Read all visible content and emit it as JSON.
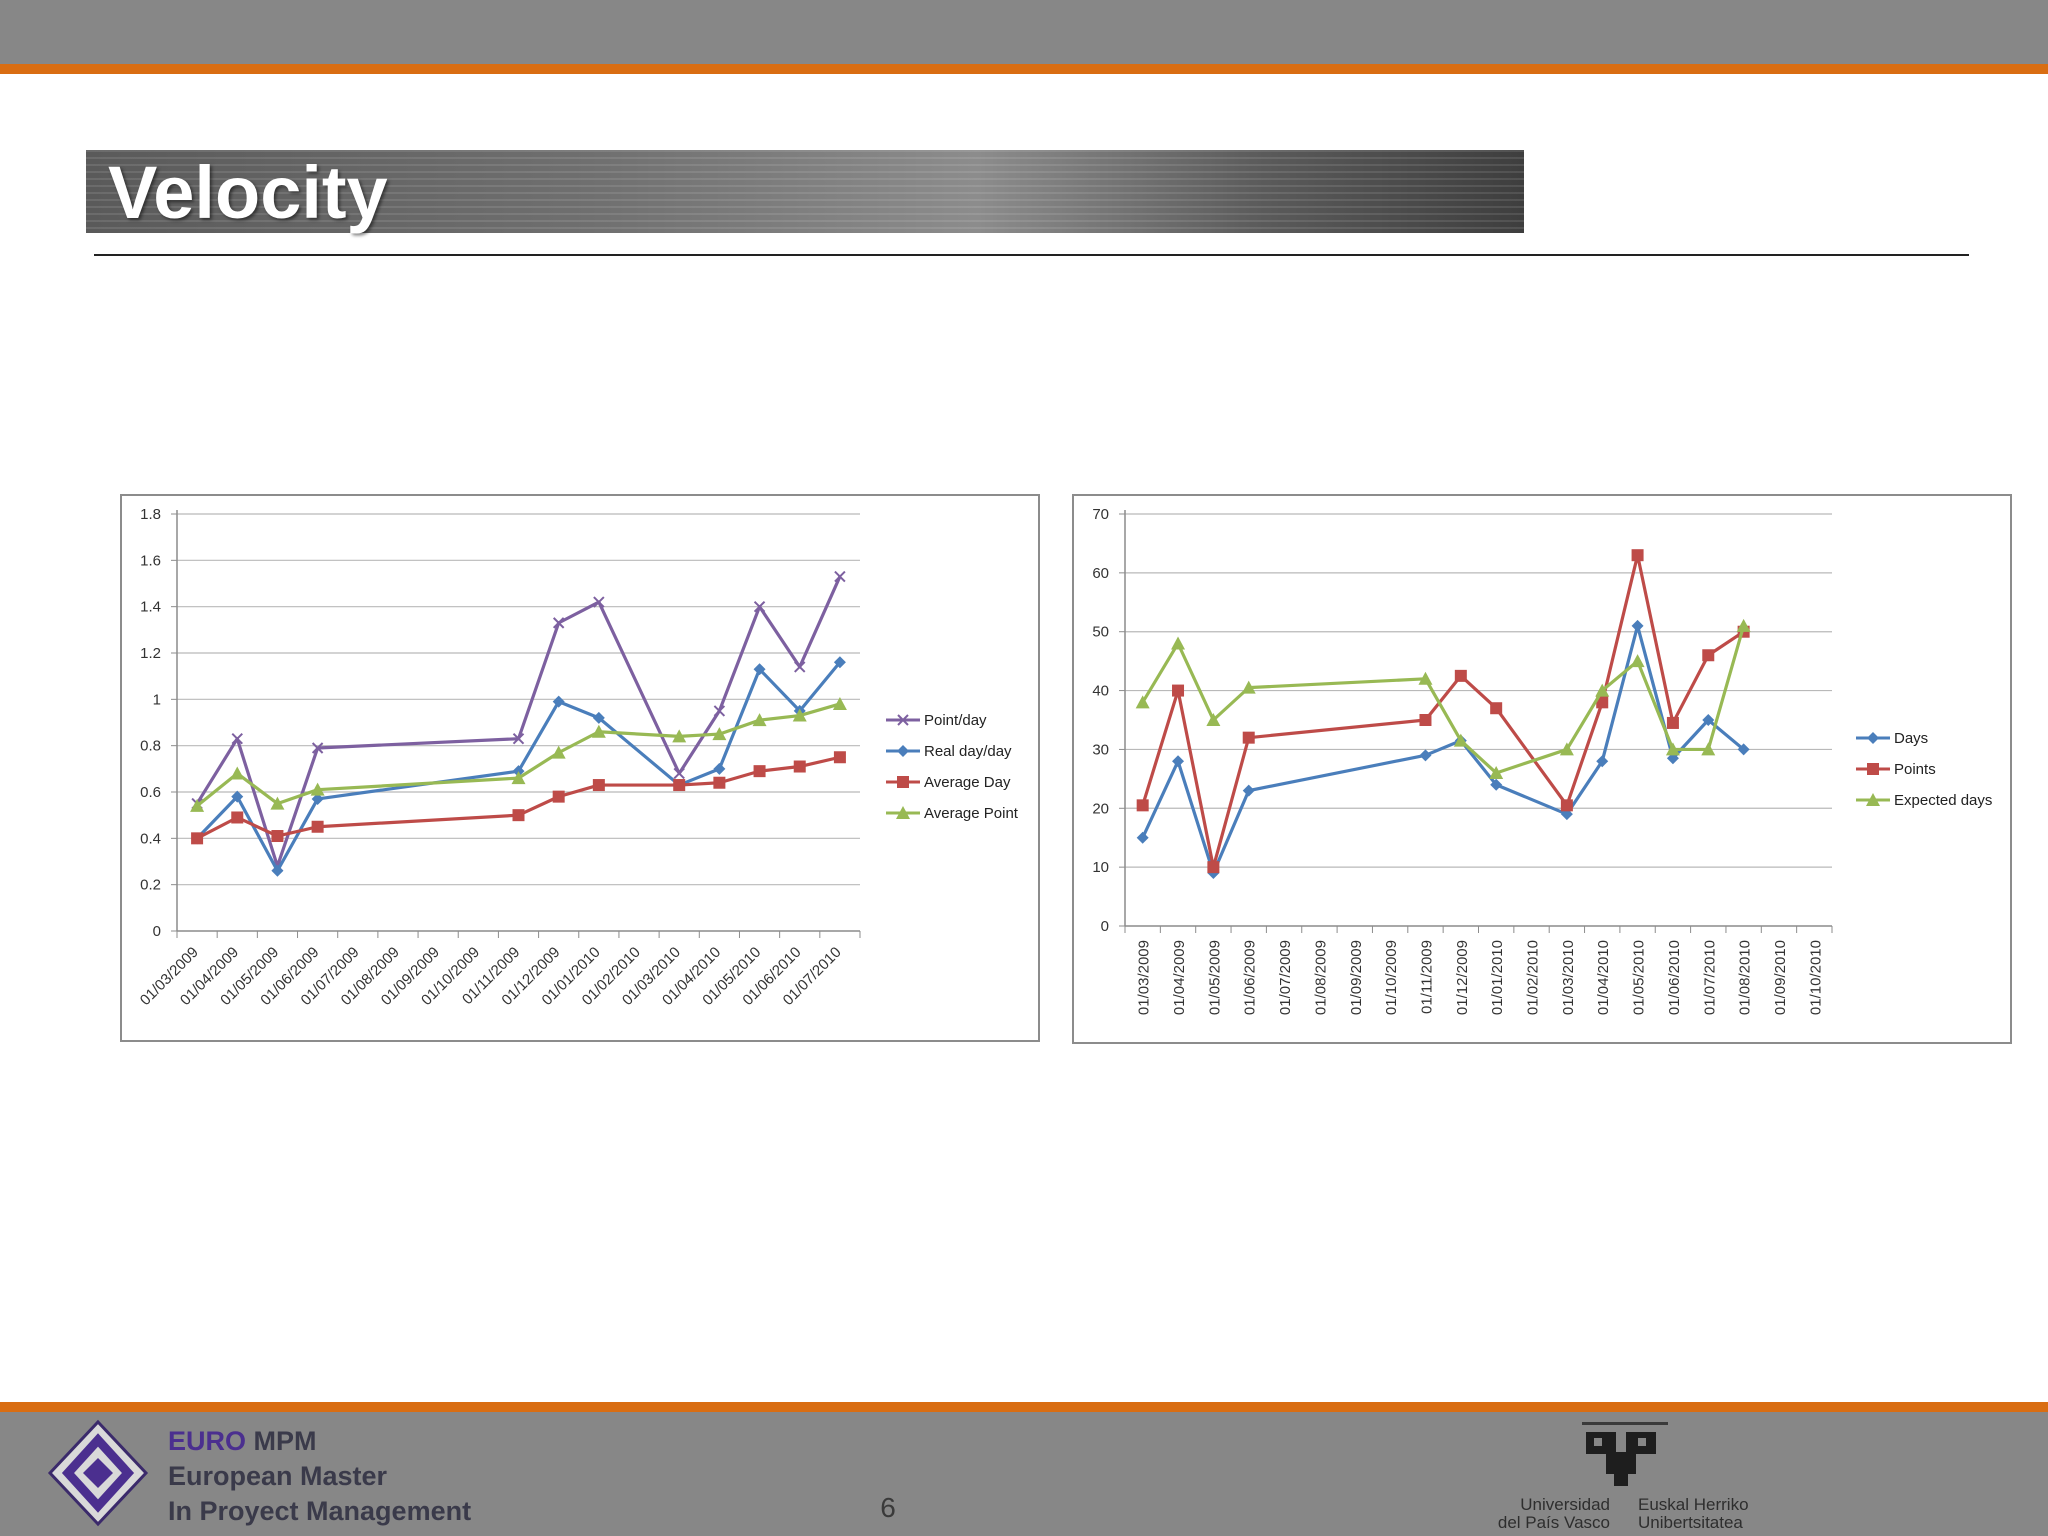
{
  "slide": {
    "title": "Velocity",
    "page_number": "6"
  },
  "footer": {
    "logo_line1_prefix": "EURO",
    "logo_line1_suffix": "MPM",
    "logo_line2": "European Master",
    "logo_line3": "In Proyect Management",
    "university_left_line1": "Universidad",
    "university_left_line2": "del País Vasco",
    "university_right_line1": "Euskal Herriko",
    "university_right_line2": "Unibertsitatea"
  },
  "colors": {
    "accent_orange": "#d96d12",
    "bar_grey": "#878787",
    "series_blue": "#4a7ebb",
    "series_red": "#be4b48",
    "series_green": "#98b954",
    "series_purple": "#7d60a0"
  },
  "chart_data": [
    {
      "type": "line",
      "categories": [
        "01/03/2009",
        "01/04/2009",
        "01/05/2009",
        "01/06/2009",
        "01/07/2009",
        "01/08/2009",
        "01/09/2009",
        "01/10/2009",
        "01/11/2009",
        "01/12/2009",
        "01/01/2010",
        "01/02/2010",
        "01/03/2010",
        "01/04/2010",
        "01/05/2010",
        "01/06/2010",
        "01/07/2010"
      ],
      "x": [
        "2009-03-01",
        "2009-04-01",
        "2009-05-01",
        "2009-06-01",
        "2009-11-01",
        "2009-12-01",
        "2010-01-01",
        "2010-03-01",
        "2010-04-01",
        "2010-05-01",
        "2010-06-01",
        "2010-07-01"
      ],
      "ylim": [
        0,
        1.8
      ],
      "yticks": [
        "0",
        "0.2",
        "0.4",
        "0.6",
        "0.8",
        "1",
        "1.2",
        "1.4",
        "1.6",
        "1.8"
      ],
      "grid": true,
      "legend": "right",
      "series": [
        {
          "name": "Point/day",
          "color": "#7d60a0",
          "marker": "x",
          "values": [
            0.55,
            0.83,
            0.28,
            0.79,
            0.83,
            1.33,
            1.42,
            0.68,
            0.95,
            1.4,
            1.14,
            1.53
          ]
        },
        {
          "name": "Real day/day",
          "color": "#4a7ebb",
          "marker": "diamond",
          "values": [
            0.4,
            0.58,
            0.26,
            0.57,
            0.69,
            0.99,
            0.92,
            0.63,
            0.7,
            1.13,
            0.95,
            1.16
          ]
        },
        {
          "name": "Average Day",
          "color": "#be4b48",
          "marker": "square",
          "values": [
            0.4,
            0.49,
            0.41,
            0.45,
            0.5,
            0.58,
            0.63,
            0.63,
            0.64,
            0.69,
            0.71,
            0.75
          ]
        },
        {
          "name": "Average Point",
          "color": "#98b954",
          "marker": "triangle",
          "values": [
            0.54,
            0.68,
            0.55,
            0.61,
            0.66,
            0.77,
            0.86,
            0.84,
            0.85,
            0.91,
            0.93,
            0.98
          ]
        }
      ]
    },
    {
      "type": "line",
      "categories": [
        "01/03/2009",
        "01/04/2009",
        "01/05/2009",
        "01/06/2009",
        "01/07/2009",
        "01/08/2009",
        "01/09/2009",
        "01/10/2009",
        "01/11/2009",
        "01/12/2009",
        "01/01/2010",
        "01/02/2010",
        "01/03/2010",
        "01/04/2010",
        "01/05/2010",
        "01/06/2010",
        "01/07/2010",
        "01/08/2010",
        "01/09/2010",
        "01/10/2010"
      ],
      "x": [
        "2009-03-01",
        "2009-04-01",
        "2009-05-01",
        "2009-06-01",
        "2009-11-01",
        "2009-12-01",
        "2010-01-01",
        "2010-03-01",
        "2010-04-01",
        "2010-05-01",
        "2010-06-01",
        "2010-07-01",
        "2010-08-01"
      ],
      "ylim": [
        0,
        70
      ],
      "yticks": [
        "0",
        "10",
        "20",
        "30",
        "40",
        "50",
        "60",
        "70"
      ],
      "grid": true,
      "legend": "right",
      "series": [
        {
          "name": "Days",
          "color": "#4a7ebb",
          "marker": "diamond",
          "values": [
            15,
            28,
            9,
            23,
            29,
            31.5,
            24,
            19,
            28,
            51,
            28.5,
            35,
            30
          ]
        },
        {
          "name": "Points",
          "color": "#be4b48",
          "marker": "square",
          "values": [
            20.5,
            40,
            10,
            32,
            35,
            42.5,
            37,
            20.5,
            38,
            63,
            34.5,
            46,
            50
          ]
        },
        {
          "name": "Expected days",
          "color": "#98b954",
          "marker": "triangle",
          "values": [
            38,
            48,
            35,
            40.5,
            42,
            31.5,
            26,
            30,
            40,
            45,
            30,
            30,
            51
          ]
        }
      ]
    }
  ]
}
